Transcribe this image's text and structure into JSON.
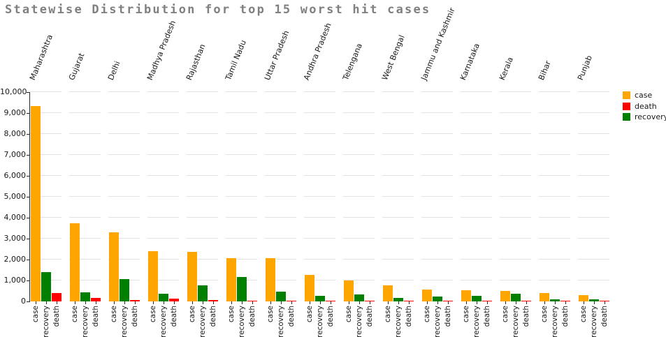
{
  "title": {
    "text": "Statewise Distribution for top 15 worst hit cases",
    "color": "#808080"
  },
  "legend": {
    "position": "top-right",
    "entries": [
      {
        "label": "case",
        "color": "#FFA500"
      },
      {
        "label": "death",
        "color": "#FF0000"
      },
      {
        "label": "recovery",
        "color": "#008000"
      }
    ]
  },
  "chart_data": {
    "type": "bar",
    "title": "Statewise Distribution for top 15 worst hit cases",
    "categories": [
      "Maharashtra",
      "Gujarat",
      "Delhi",
      "Madhya Pradesh",
      "Rajasthan",
      "Tamil Nadu",
      "Uttar Pradesh",
      "Andhra Pradesh",
      "Telengana",
      "West Bengal",
      "Jammu and Kashmir",
      "Karnataka",
      "Kerala",
      "Bihar",
      "Punjab"
    ],
    "bar_order": [
      "case",
      "recovery",
      "death"
    ],
    "series": [
      {
        "name": "case",
        "color": "#FFA500",
        "values": [
          9318,
          3744,
          3314,
          2387,
          2364,
          2058,
          2053,
          1280,
          990,
          765,
          560,
          525,
          500,
          390,
          305
        ]
      },
      {
        "name": "death",
        "color": "#FF0000",
        "values": [
          400,
          181,
          54,
          120,
          51,
          25,
          34,
          31,
          25,
          25,
          10,
          30,
          5,
          5,
          40
        ]
      },
      {
        "name": "recovery",
        "color": "#008000",
        "values": [
          1388,
          434,
          1078,
          373,
          770,
          1160,
          466,
          271,
          321,
          160,
          228,
          255,
          369,
          95,
          100
        ]
      }
    ],
    "xlabel": "",
    "ylabel": "",
    "ylim": [
      0,
      10000
    ],
    "ytick_step": 1000,
    "ytick_format": "comma",
    "grid": "horizontal-per-group-segments",
    "legend_position": "top-right",
    "colors": {
      "grid": "#e2e2e2",
      "axis": "#262626",
      "tick_label": "#1a1a1a",
      "background": "#ffffff"
    }
  }
}
